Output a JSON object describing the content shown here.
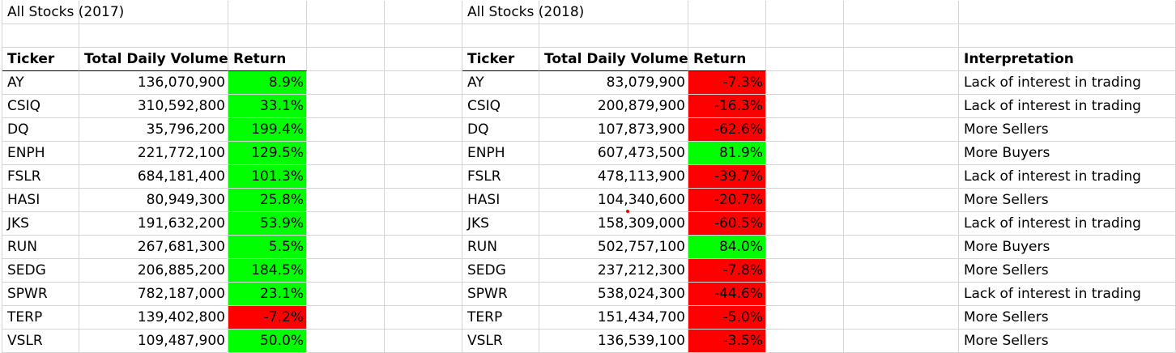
{
  "section_2017": {
    "title": "All Stocks (2017)",
    "headers": {
      "ticker": "Ticker",
      "volume": "Total Daily Volume",
      "return": "Return"
    },
    "rows": [
      {
        "ticker": "AY",
        "volume": "136,070,900",
        "return": "8.9%",
        "status": "positive"
      },
      {
        "ticker": "CSIQ",
        "volume": "310,592,800",
        "return": "33.1%",
        "status": "positive"
      },
      {
        "ticker": "DQ",
        "volume": "35,796,200",
        "return": "199.4%",
        "status": "positive"
      },
      {
        "ticker": "ENPH",
        "volume": "221,772,100",
        "return": "129.5%",
        "status": "positive"
      },
      {
        "ticker": "FSLR",
        "volume": "684,181,400",
        "return": "101.3%",
        "status": "positive"
      },
      {
        "ticker": "HASI",
        "volume": "80,949,300",
        "return": "25.8%",
        "status": "positive"
      },
      {
        "ticker": "JKS",
        "volume": "191,632,200",
        "return": "53.9%",
        "status": "positive"
      },
      {
        "ticker": "RUN",
        "volume": "267,681,300",
        "return": "5.5%",
        "status": "positive"
      },
      {
        "ticker": "SEDG",
        "volume": "206,885,200",
        "return": "184.5%",
        "status": "positive"
      },
      {
        "ticker": "SPWR",
        "volume": "782,187,000",
        "return": "23.1%",
        "status": "positive"
      },
      {
        "ticker": "TERP",
        "volume": "139,402,800",
        "return": "-7.2%",
        "status": "negative"
      },
      {
        "ticker": "VSLR",
        "volume": "109,487,900",
        "return": "50.0%",
        "status": "positive"
      }
    ]
  },
  "section_2018": {
    "title": "All Stocks (2018)",
    "headers": {
      "ticker": "Ticker",
      "volume": "Total Daily Volume",
      "return": "Return",
      "interpretation": "Interpretation"
    },
    "rows": [
      {
        "ticker": "AY",
        "volume": "83,079,900",
        "return": "-7.3%",
        "status": "negative",
        "interpretation": "Lack of interest in trading"
      },
      {
        "ticker": "CSIQ",
        "volume": "200,879,900",
        "return": "-16.3%",
        "status": "negative",
        "interpretation": "Lack of interest in trading"
      },
      {
        "ticker": "DQ",
        "volume": "107,873,900",
        "return": "-62.6%",
        "status": "negative",
        "interpretation": "More Sellers"
      },
      {
        "ticker": "ENPH",
        "volume": "607,473,500",
        "return": "81.9%",
        "status": "positive",
        "interpretation": "More Buyers"
      },
      {
        "ticker": "FSLR",
        "volume": "478,113,900",
        "return": "-39.7%",
        "status": "negative",
        "interpretation": "Lack of interest in trading"
      },
      {
        "ticker": "HASI",
        "volume": "104,340,600",
        "return": "-20.7%",
        "status": "negative",
        "interpretation": "More Sellers"
      },
      {
        "ticker": "JKS",
        "volume": "158,309,000",
        "return": "-60.5%",
        "status": "negative",
        "interpretation": "Lack of interest in trading"
      },
      {
        "ticker": "RUN",
        "volume": "502,757,100",
        "return": "84.0%",
        "status": "positive",
        "interpretation": "More Buyers"
      },
      {
        "ticker": "SEDG",
        "volume": "237,212,300",
        "return": "-7.8%",
        "status": "negative",
        "interpretation": "More Sellers"
      },
      {
        "ticker": "SPWR",
        "volume": "538,024,300",
        "return": "-44.6%",
        "status": "negative",
        "interpretation": "Lack of interest in trading"
      },
      {
        "ticker": "TERP",
        "volume": "151,434,700",
        "return": "-5.0%",
        "status": "negative",
        "interpretation": "More Sellers"
      },
      {
        "ticker": "VSLR",
        "volume": "136,539,100",
        "return": "-3.5%",
        "status": "negative",
        "interpretation": "More Sellers"
      }
    ]
  },
  "colors": {
    "positive_fill": "#00ff00",
    "negative_fill": "#ff0000",
    "gridline": "#d4d4d4",
    "header_underline": "#000000",
    "annotation_dot": "#ff0000"
  }
}
